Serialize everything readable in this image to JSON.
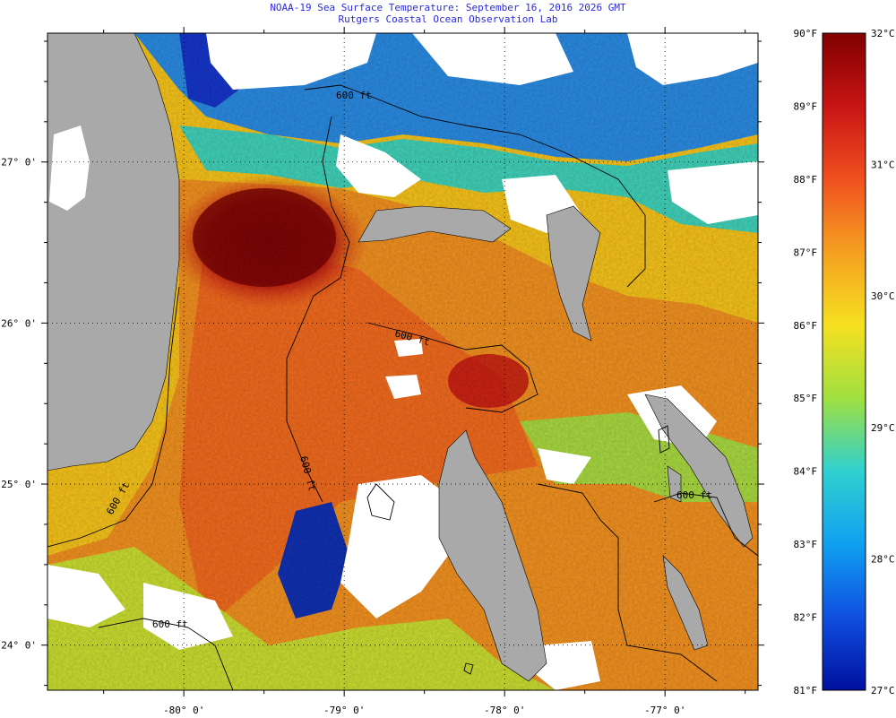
{
  "title": {
    "line1": "NOAA-19 Sea Surface Temperature:  September 16, 2016 2026 GMT",
    "line2": "Rutgers Coastal Ocean Observation Lab"
  },
  "map": {
    "lon_range": [
      -80.85,
      -76.42
    ],
    "lat_range": [
      23.72,
      27.8
    ],
    "lon_ticks": [
      {
        "value": -80,
        "label": "-80° 0'"
      },
      {
        "value": -79,
        "label": "-79° 0'"
      },
      {
        "value": -78,
        "label": "-78° 0'"
      },
      {
        "value": -77,
        "label": "-77° 0'"
      }
    ],
    "lat_ticks": [
      {
        "value": 27,
        "label": "27° 0'"
      },
      {
        "value": 26,
        "label": "26° 0'"
      },
      {
        "value": 25,
        "label": "25° 0'"
      },
      {
        "value": 24,
        "label": "24° 0'"
      }
    ],
    "contour_labels": [
      "600 ft",
      "600 ft",
      "600 ft",
      "600 ft",
      "600 ft",
      "600 ft"
    ],
    "colors": {
      "land": "#a9a9a9",
      "cloud": "#ffffff",
      "hot": "#8b0a0a",
      "warm": "#f0641e",
      "mid": "#f5c21a",
      "cool": "#2ec8e8",
      "cold": "#1535c8"
    }
  },
  "colorbar": {
    "f_labels": [
      "90°F",
      "89°F",
      "88°F",
      "87°F",
      "86°F",
      "85°F",
      "84°F",
      "83°F",
      "82°F",
      "81°F"
    ],
    "c_labels": [
      "32°C",
      "31°C",
      "30°C",
      "29°C",
      "28°C",
      "27°C"
    ],
    "stops": [
      "#800000",
      "#c81414",
      "#f05020",
      "#f5a020",
      "#f5e020",
      "#a0e040",
      "#30d0d0",
      "#10a0f0",
      "#1050e0",
      "#0010a0"
    ]
  }
}
